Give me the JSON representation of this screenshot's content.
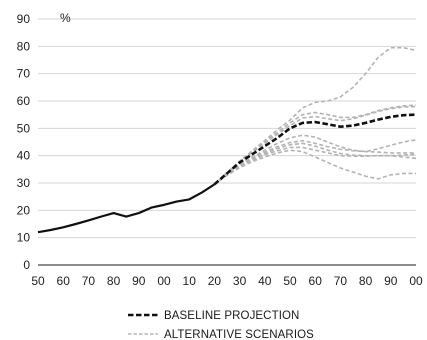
{
  "chart_data": {
    "type": "line",
    "title": "",
    "xlabel": "",
    "ylabel": "%",
    "ylim": [
      0,
      90
    ],
    "yticks": [
      0,
      10,
      20,
      30,
      40,
      50,
      60,
      70,
      80,
      90
    ],
    "xlim": [
      1950,
      2100
    ],
    "xticks": [
      1950,
      1960,
      1970,
      1980,
      1990,
      2000,
      2010,
      2020,
      2030,
      2040,
      2050,
      2060,
      2070,
      2080,
      2090,
      2100
    ],
    "xtick_labels": [
      "50",
      "60",
      "70",
      "80",
      "90",
      "00",
      "10",
      "20",
      "30",
      "40",
      "50",
      "60",
      "70",
      "80",
      "90",
      "00"
    ],
    "grid": "horizontal",
    "legend": "bottom-center",
    "historical": {
      "color": "#111111",
      "style": "solid",
      "x": [
        1950,
        1955,
        1960,
        1965,
        1970,
        1975,
        1980,
        1985,
        1990,
        1995,
        2000,
        2005,
        2010,
        2015,
        2020
      ],
      "values": [
        12,
        12.8,
        13.8,
        15.0,
        16.3,
        17.7,
        19.0,
        17.7,
        19.0,
        21.0,
        22.0,
        23.2,
        24.0,
        26.5,
        29.5
      ]
    },
    "series": [
      {
        "name": "BASELINE PROJECTION",
        "color": "#111111",
        "style": "dashed",
        "x": [
          2020,
          2025,
          2030,
          2035,
          2040,
          2045,
          2050,
          2055,
          2060,
          2065,
          2070,
          2075,
          2080,
          2085,
          2090,
          2095,
          2100
        ],
        "values": [
          29.5,
          33.5,
          37.5,
          40.5,
          43.5,
          46.5,
          50.0,
          52.0,
          52.3,
          51.5,
          50.6,
          51.0,
          52.0,
          53.2,
          54.2,
          54.8,
          55.0
        ]
      },
      {
        "name": "ALTERNATIVE SCENARIOS",
        "color": "#b3b3b3",
        "style": "dashed",
        "lines": [
          {
            "x": [
              2020,
              2025,
              2030,
              2035,
              2040,
              2045,
              2050,
              2055,
              2060,
              2065,
              2070,
              2075,
              2080,
              2085,
              2090,
              2095,
              2100
            ],
            "values": [
              29.5,
              33.8,
              38.0,
              41.8,
              45.5,
              49.5,
              53.0,
              57.5,
              59.5,
              60.0,
              61.5,
              65.0,
              70.0,
              76.0,
              79.5,
              79.5,
              78.5
            ]
          },
          {
            "x": [
              2020,
              2025,
              2030,
              2035,
              2040,
              2045,
              2050,
              2055,
              2060,
              2065,
              2070,
              2075,
              2080,
              2085,
              2090,
              2095,
              2100
            ],
            "values": [
              29.5,
              33.8,
              37.8,
              41.5,
              45.0,
              48.5,
              52.0,
              55.0,
              55.8,
              55.0,
              54.0,
              54.0,
              55.0,
              56.5,
              57.5,
              58.2,
              58.5
            ]
          },
          {
            "x": [
              2020,
              2025,
              2030,
              2035,
              2040,
              2045,
              2050,
              2055,
              2060,
              2065,
              2070,
              2075,
              2080,
              2085,
              2090,
              2095,
              2100
            ],
            "values": [
              29.5,
              33.7,
              37.7,
              41.2,
              44.5,
              47.8,
              51.0,
              53.8,
              54.3,
              53.5,
              52.8,
              53.5,
              54.8,
              56.2,
              57.2,
              57.8,
              58.0
            ]
          },
          {
            "x": [
              2020,
              2025,
              2030,
              2035,
              2040,
              2045,
              2050,
              2055,
              2060,
              2065,
              2070,
              2075,
              2080,
              2085,
              2090,
              2095,
              2100
            ],
            "values": [
              29.5,
              33.3,
              36.8,
              39.5,
              42.0,
              44.5,
              46.5,
              47.5,
              46.8,
              45.0,
              43.2,
              42.0,
              41.5,
              42.5,
              43.8,
              45.0,
              45.8
            ]
          },
          {
            "x": [
              2020,
              2025,
              2030,
              2035,
              2040,
              2045,
              2050,
              2055,
              2060,
              2065,
              2070,
              2075,
              2080,
              2085,
              2090,
              2095,
              2100
            ],
            "values": [
              29.5,
              33.2,
              36.5,
              39.0,
              41.3,
              43.3,
              44.8,
              45.5,
              44.5,
              43.3,
              42.3,
              41.8,
              41.5,
              41.3,
              41.0,
              41.0,
              41.0
            ]
          },
          {
            "x": [
              2020,
              2025,
              2030,
              2035,
              2040,
              2045,
              2050,
              2055,
              2060,
              2065,
              2070,
              2075,
              2080,
              2085,
              2090,
              2095,
              2100
            ],
            "values": [
              29.5,
              33.1,
              36.3,
              38.8,
              40.8,
              42.6,
              44.0,
              44.5,
              43.5,
              42.0,
              40.8,
              40.2,
              40.0,
              40.0,
              40.0,
              40.2,
              40.5
            ]
          },
          {
            "x": [
              2020,
              2025,
              2030,
              2035,
              2040,
              2045,
              2050,
              2055,
              2060,
              2065,
              2070,
              2075,
              2080,
              2085,
              2090,
              2095,
              2100
            ],
            "values": [
              29.5,
              33.0,
              36.0,
              38.3,
              40.3,
              41.8,
              43.0,
              43.0,
              42.0,
              41.0,
              40.0,
              39.8,
              39.8,
              40.0,
              40.0,
              39.5,
              39.0
            ]
          },
          {
            "x": [
              2020,
              2025,
              2030,
              2035,
              2040,
              2045,
              2050,
              2055,
              2060,
              2065,
              2070,
              2075,
              2080,
              2085,
              2090,
              2095,
              2100
            ],
            "values": [
              29.5,
              32.8,
              35.6,
              37.8,
              39.5,
              41.0,
              42.0,
              41.5,
              39.5,
              37.5,
              35.5,
              34.0,
              32.5,
              31.5,
              33.0,
              33.5,
              33.5
            ]
          }
        ]
      }
    ],
    "legend_entries": [
      {
        "label": "BASELINE PROJECTION",
        "color": "#111111",
        "style": "dashed-bold"
      },
      {
        "label": "ALTERNATIVE SCENARIOS",
        "color": "#a6a6a6",
        "style": "dashed-thin"
      }
    ],
    "colors": {
      "axis": "#1a1a1a",
      "grid": "#d6d6d6",
      "historical": "#111111",
      "baseline": "#111111",
      "alternative": "#b3b3b3"
    }
  }
}
